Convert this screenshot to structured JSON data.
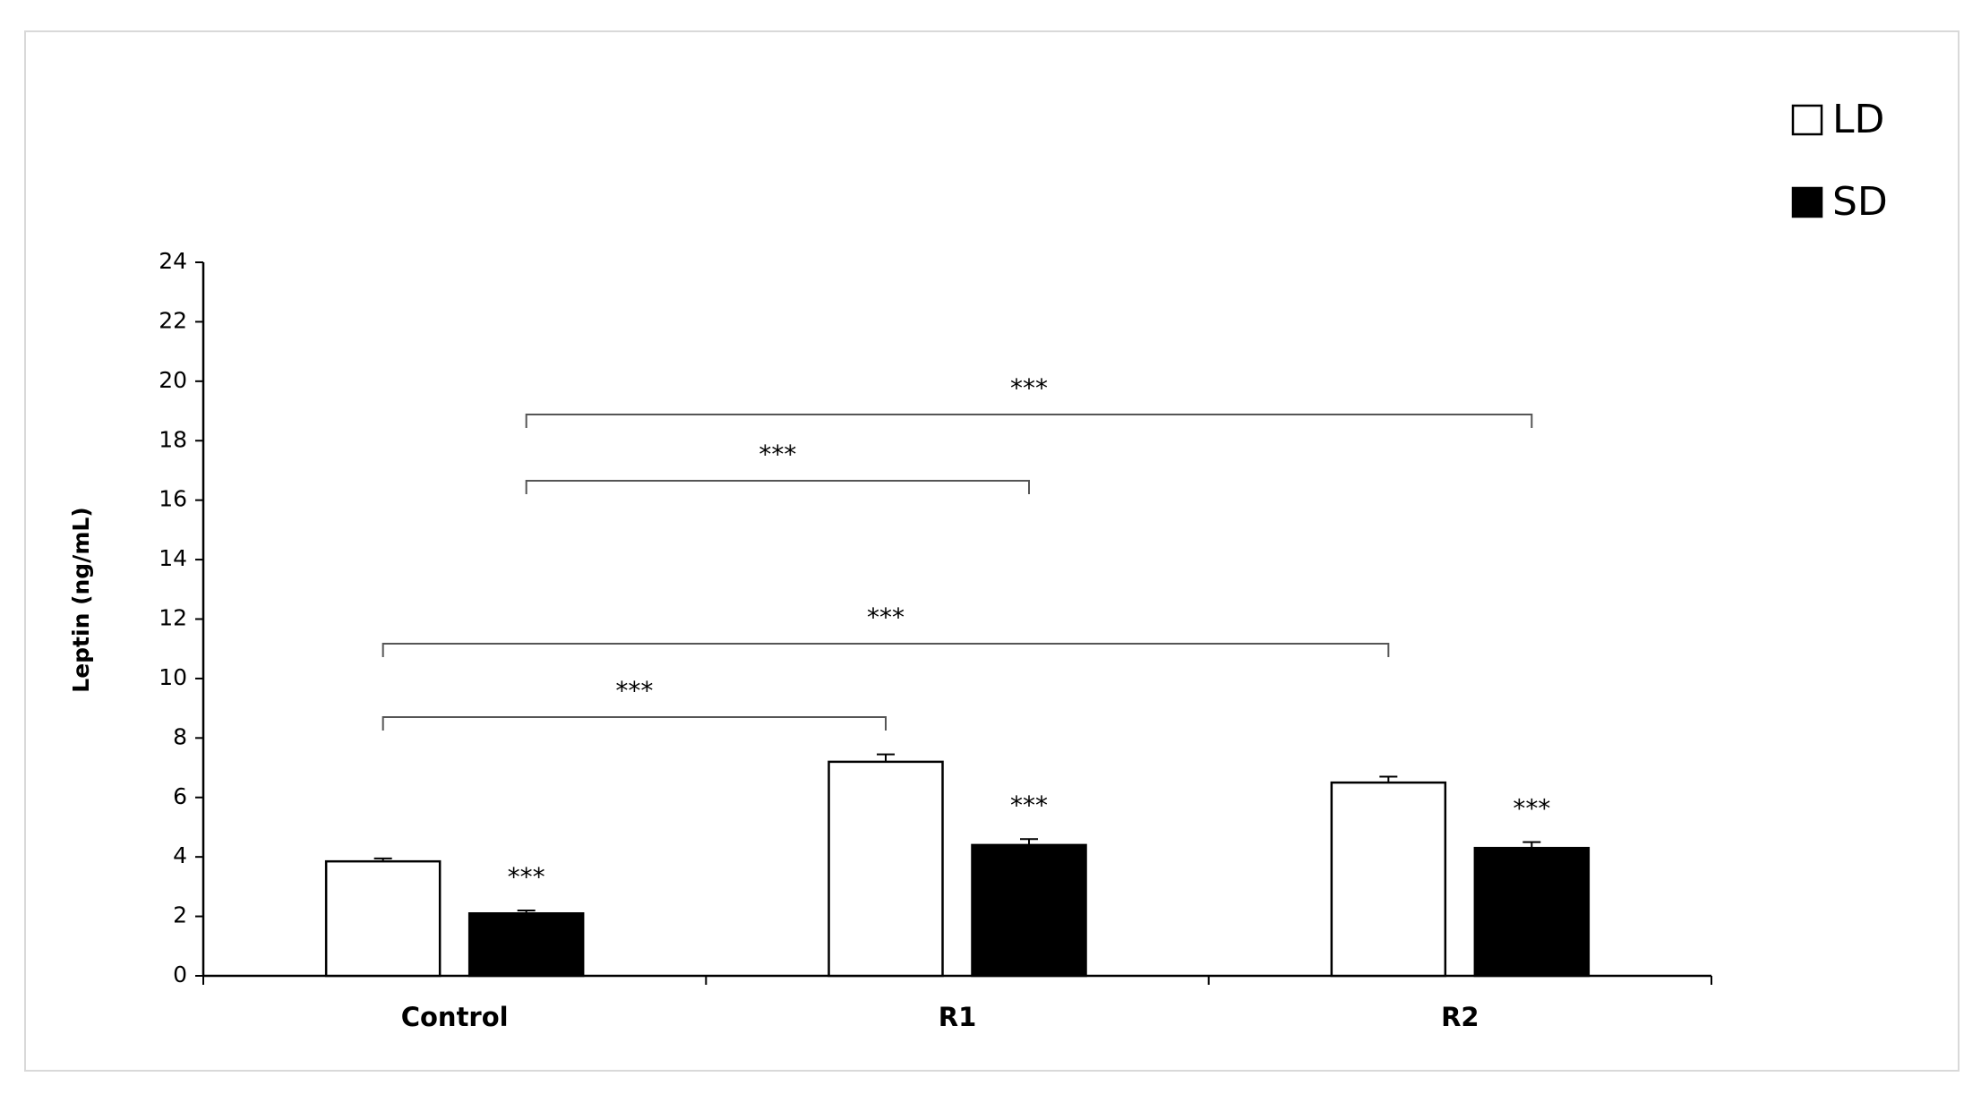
{
  "chart_data": {
    "type": "bar",
    "y_label": "Leptin (ng/mL)",
    "categories": [
      "Control",
      "R1",
      "R2"
    ],
    "series": [
      {
        "name": "LD",
        "color": "#ffffff",
        "values": [
          3.85,
          7.2,
          6.5
        ],
        "errors": [
          0.1,
          0.25,
          0.2
        ]
      },
      {
        "name": "SD",
        "color": "#000000",
        "values": [
          2.1,
          4.4,
          4.3
        ],
        "errors": [
          0.1,
          0.2,
          0.2
        ],
        "labels": [
          "***",
          "***",
          "***"
        ]
      }
    ],
    "significance": [
      {
        "label": "***",
        "series": "LD",
        "from": "Control",
        "to": "R1"
      },
      {
        "label": "***",
        "series": "LD",
        "from": "Control",
        "to": "R2"
      },
      {
        "label": "***",
        "series": "SD",
        "from": "Control",
        "to": "R1"
      },
      {
        "label": "***",
        "series": "SD",
        "from": "Control",
        "to": "R2"
      }
    ],
    "ylim": [
      0,
      24
    ],
    "yticks": [
      0,
      2,
      4,
      6,
      8,
      10,
      12,
      14,
      16,
      18,
      20,
      22,
      24
    ]
  }
}
